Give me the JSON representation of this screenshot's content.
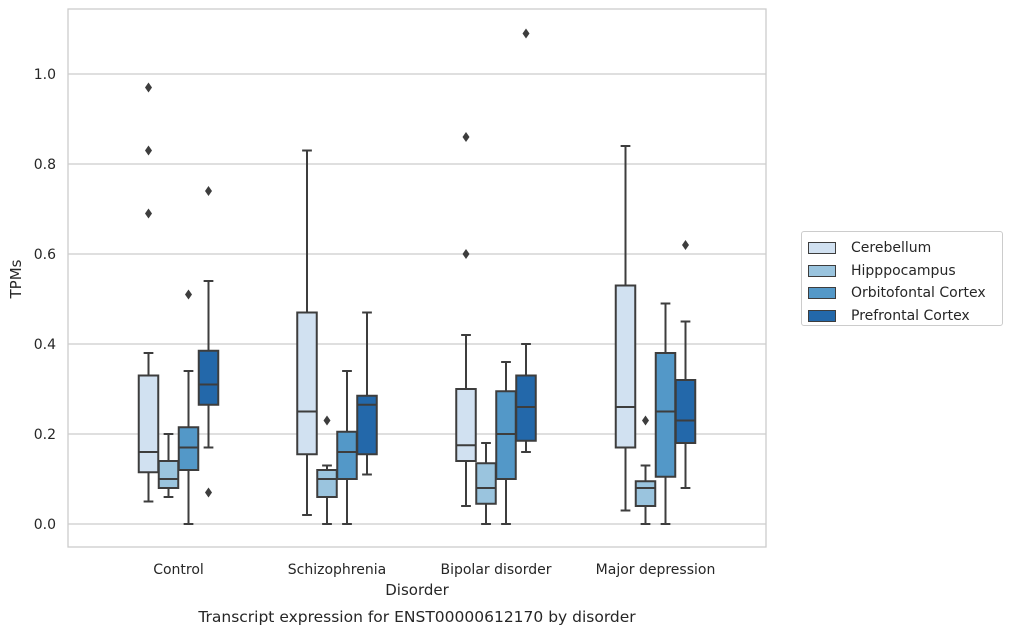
{
  "chart_data": {
    "type": "box",
    "title": "",
    "caption": "Transcript expression for ENST00000612170 by disorder",
    "xlabel": "Disorder",
    "ylabel": "TPMs",
    "ylim": [
      -0.05,
      1.15
    ],
    "yticks": [
      0.0,
      0.2,
      0.4,
      0.6,
      0.8,
      1.0
    ],
    "ytick_labels": [
      "0.0",
      "0.2",
      "0.4",
      "0.6",
      "0.8",
      "1.0"
    ],
    "grid": "horizontal",
    "legend_position": "outside-right",
    "categories": [
      "Control",
      "Schizophrenia",
      "Bipolar disorder",
      "Major depression"
    ],
    "series": [
      {
        "name": "Cerebellum",
        "color": "#d1e1f1",
        "boxes": [
          {
            "whislo": 0.05,
            "q1": 0.115,
            "med": 0.16,
            "q3": 0.33,
            "whishi": 0.38,
            "fliers": [
              0.69,
              0.83,
              0.97
            ]
          },
          {
            "whislo": 0.02,
            "q1": 0.155,
            "med": 0.25,
            "q3": 0.47,
            "whishi": 0.83,
            "fliers": []
          },
          {
            "whislo": 0.04,
            "q1": 0.14,
            "med": 0.175,
            "q3": 0.3,
            "whishi": 0.42,
            "fliers": [
              0.6,
              0.86
            ]
          },
          {
            "whislo": 0.03,
            "q1": 0.17,
            "med": 0.26,
            "q3": 0.53,
            "whishi": 0.84,
            "fliers": []
          }
        ]
      },
      {
        "name": "Hipppocampus",
        "color": "#9ac4de",
        "boxes": [
          {
            "whislo": 0.06,
            "q1": 0.08,
            "med": 0.1,
            "q3": 0.14,
            "whishi": 0.2,
            "fliers": []
          },
          {
            "whislo": 0.0,
            "q1": 0.06,
            "med": 0.1,
            "q3": 0.12,
            "whishi": 0.13,
            "fliers": [
              0.23
            ]
          },
          {
            "whislo": 0.0,
            "q1": 0.045,
            "med": 0.08,
            "q3": 0.135,
            "whishi": 0.18,
            "fliers": []
          },
          {
            "whislo": 0.0,
            "q1": 0.04,
            "med": 0.08,
            "q3": 0.095,
            "whishi": 0.13,
            "fliers": [
              0.23
            ]
          }
        ]
      },
      {
        "name": "Orbitofontal Cortex",
        "color": "#5398c8",
        "boxes": [
          {
            "whislo": 0.0,
            "q1": 0.12,
            "med": 0.17,
            "q3": 0.215,
            "whishi": 0.34,
            "fliers": [
              0.51
            ]
          },
          {
            "whislo": 0.0,
            "q1": 0.1,
            "med": 0.16,
            "q3": 0.205,
            "whishi": 0.34,
            "fliers": []
          },
          {
            "whislo": 0.0,
            "q1": 0.1,
            "med": 0.2,
            "q3": 0.295,
            "whishi": 0.36,
            "fliers": []
          },
          {
            "whislo": 0.0,
            "q1": 0.105,
            "med": 0.25,
            "q3": 0.38,
            "whishi": 0.49,
            "fliers": []
          }
        ]
      },
      {
        "name": "Prefrontal Cortex",
        "color": "#2368aa",
        "boxes": [
          {
            "whislo": 0.17,
            "q1": 0.265,
            "med": 0.31,
            "q3": 0.385,
            "whishi": 0.54,
            "fliers": [
              0.07,
              0.74
            ]
          },
          {
            "whislo": 0.11,
            "q1": 0.155,
            "med": 0.265,
            "q3": 0.285,
            "whishi": 0.47,
            "fliers": []
          },
          {
            "whislo": 0.16,
            "q1": 0.185,
            "med": 0.26,
            "q3": 0.33,
            "whishi": 0.4,
            "fliers": [
              1.09
            ]
          },
          {
            "whislo": 0.08,
            "q1": 0.18,
            "med": 0.23,
            "q3": 0.32,
            "whishi": 0.45,
            "fliers": [
              0.62
            ]
          }
        ]
      }
    ]
  }
}
